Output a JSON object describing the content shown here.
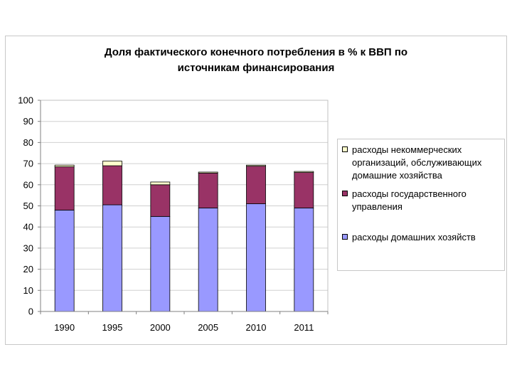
{
  "chart_data": {
    "type": "bar",
    "stacked": true,
    "title_lines": [
      "Доля фактического конечного потребления в % к ВВП по",
      "источникам финансирования"
    ],
    "categories": [
      "1990",
      "1995",
      "2000",
      "2005",
      "2010",
      "2011"
    ],
    "series": [
      {
        "name": "расходы домашних хозяйств",
        "color": "#9999ff",
        "values": [
          48,
          50.5,
          45,
          49,
          51,
          49
        ]
      },
      {
        "name": "расходы государственного управления",
        "color": "#993366",
        "values": [
          20.5,
          18.5,
          15,
          16.5,
          17.8,
          16.8
        ]
      },
      {
        "name": "расходы некоммерческих организаций, обслуживающих домашние хозяйства",
        "color": "#ffffcc",
        "values": [
          0.8,
          2.2,
          1.3,
          0.5,
          0.5,
          0.5
        ]
      }
    ],
    "ylim": [
      0,
      100
    ],
    "yticks": [
      "0",
      "10",
      "20",
      "30",
      "40",
      "50",
      "60",
      "70",
      "80",
      "90",
      "100"
    ],
    "grid": true,
    "legend_position": "right"
  },
  "legend": {
    "items": [
      {
        "label": "расходы некоммерческих организаций, обслуживающих домашние хозяйства",
        "color": "#ffffcc"
      },
      {
        "label": "расходы государственного управления",
        "color": "#993366"
      },
      {
        "label": "расходы домашних хозяйств",
        "color": "#9999ff"
      }
    ]
  }
}
